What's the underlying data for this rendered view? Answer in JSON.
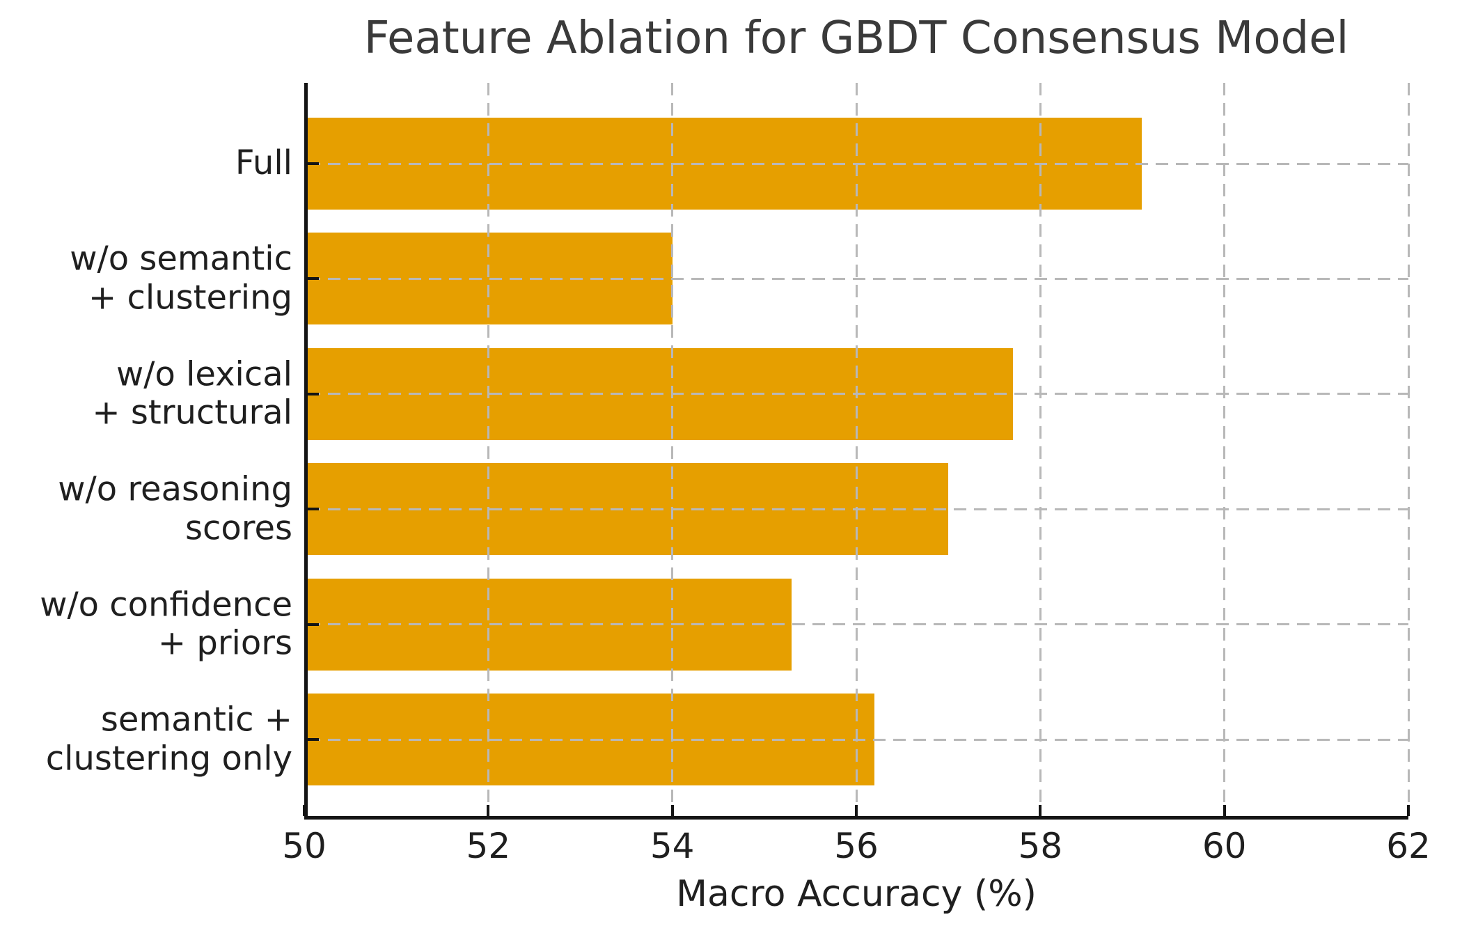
{
  "chart_data": {
    "type": "bar",
    "orientation": "horizontal",
    "title": "Feature Ablation for GBDT Consensus Model",
    "xlabel": "Macro Accuracy (%)",
    "ylabel": "",
    "categories": [
      "Full",
      "w/o semantic\n+ clustering",
      "w/o lexical\n+ structural",
      "w/o reasoning\nscores",
      "w/o confidence\n+ priors",
      "semantic +\nclustering only"
    ],
    "values": [
      59.1,
      54.0,
      57.7,
      57.0,
      55.3,
      56.2
    ],
    "xlim": [
      50,
      62
    ],
    "xticks": [
      50,
      52,
      54,
      56,
      58,
      60,
      62
    ],
    "grid": true,
    "grid_style": "dashed",
    "grid_on_top": true,
    "legend": false,
    "colors": {
      "bar": "#E69F00",
      "grid": "#B8B8B8",
      "spine": "#141414",
      "text": "#1F1F1F",
      "title": "#3A3A3A",
      "background": "#FFFFFF"
    }
  }
}
